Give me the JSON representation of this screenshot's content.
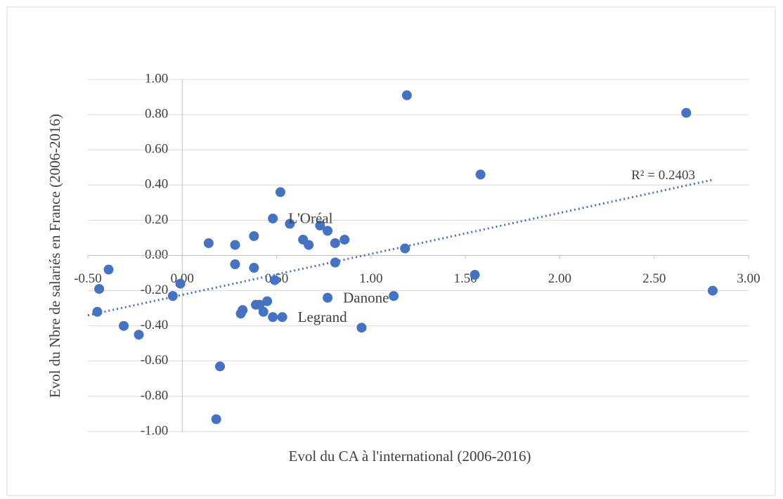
{
  "chart_data": {
    "type": "scatter",
    "x_label": "Evol du CA à l'international (2006-2016)",
    "y_label": "Evol du Nbre de salariés en France (2006-2016)",
    "color": "#4472c4",
    "grid": true,
    "xlim": [
      -0.5,
      3.0
    ],
    "ylim": [
      -1.0,
      1.0
    ],
    "xticks": [
      {
        "value": -0.5,
        "label": "-0.50"
      },
      {
        "value": 0,
        "label": "0.00"
      },
      {
        "value": 0.5,
        "label": "0.50"
      },
      {
        "value": 1,
        "label": "1.00"
      },
      {
        "value": 1.5,
        "label": "1.50"
      },
      {
        "value": 2,
        "label": "2.00"
      },
      {
        "value": 2.5,
        "label": "2.50"
      },
      {
        "value": 3,
        "label": "3.00"
      }
    ],
    "yticks": [
      {
        "value": 1,
        "label": "1.00"
      },
      {
        "value": 0.8,
        "label": "0.80"
      },
      {
        "value": 0.6,
        "label": "0.60"
      },
      {
        "value": 0.4,
        "label": "0.40"
      },
      {
        "value": 0.2,
        "label": "0.20"
      },
      {
        "value": 0,
        "label": "0.00"
      },
      {
        "value": -0.2,
        "label": "-0.20"
      },
      {
        "value": -0.4,
        "label": "-0.40"
      },
      {
        "value": -0.6,
        "label": "-0.60"
      },
      {
        "value": -0.8,
        "label": "-0.80"
      },
      {
        "value": -1,
        "label": "-1.00"
      }
    ],
    "x": [
      1.19,
      2.67,
      1.58,
      0.52,
      0.48,
      0.57,
      0.73,
      0.77,
      0.38,
      0.14,
      0.28,
      0.64,
      0.67,
      0.81,
      0.86,
      1.18,
      -0.39,
      0.28,
      0.38,
      0.81,
      -0.44,
      -0.01,
      0.49,
      1.55,
      2.81,
      -0.05,
      1.12,
      0.77,
      -0.45,
      0.39,
      0.41,
      0.45,
      0.32,
      0.31,
      0.43,
      0.48,
      0.53,
      -0.31,
      -0.23,
      0.95,
      0.2,
      0.18
    ],
    "y": [
      0.91,
      0.81,
      0.46,
      0.36,
      0.21,
      0.18,
      0.17,
      0.14,
      0.11,
      0.07,
      0.06,
      0.09,
      0.06,
      0.07,
      0.09,
      0.04,
      -0.08,
      -0.05,
      -0.07,
      -0.04,
      -0.19,
      -0.16,
      -0.14,
      -0.11,
      -0.2,
      -0.23,
      -0.23,
      -0.24,
      -0.32,
      -0.28,
      -0.28,
      -0.26,
      -0.31,
      -0.33,
      -0.32,
      -0.35,
      -0.35,
      -0.4,
      -0.45,
      -0.41,
      -0.63,
      -0.93
    ],
    "annotations": [
      {
        "text": "L'Oréal",
        "x": 0.48,
        "y": 0.21
      },
      {
        "text": "Danone",
        "x": 0.77,
        "y": -0.24
      },
      {
        "text": "Legrand",
        "x": 0.53,
        "y": -0.35
      }
    ],
    "trendline": {
      "x": [
        -0.5,
        2.81
      ],
      "y": [
        -0.34,
        0.43
      ],
      "label": "R² = 0.2403"
    }
  }
}
